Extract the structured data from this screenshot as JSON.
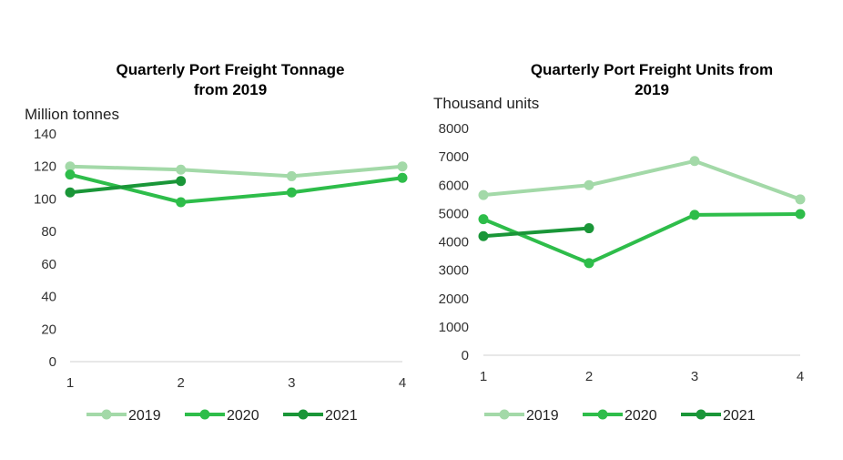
{
  "chart_data": [
    {
      "type": "line",
      "title_lines": [
        "Quarterly Port Freight Tonnage",
        "from 2019"
      ],
      "ylabel": "Million tonnes",
      "xlabel": "",
      "x": [
        "1",
        "2",
        "3",
        "4"
      ],
      "ylim": [
        0,
        140
      ],
      "yticks": [
        "0",
        "20",
        "40",
        "60",
        "80",
        "100",
        "120",
        "140"
      ],
      "grid": false,
      "legend": "bottom",
      "series": [
        {
          "name": "2019",
          "color": "#a3d9a8",
          "values": [
            120,
            118,
            114,
            120
          ]
        },
        {
          "name": "2020",
          "color": "#2ebd4a",
          "values": [
            115,
            98,
            104,
            113
          ]
        },
        {
          "name": "2021",
          "color": "#1a9638",
          "values": [
            104,
            111,
            null,
            null
          ]
        }
      ]
    },
    {
      "type": "line",
      "title_lines": [
        "Quarterly Port Freight Units from",
        "2019"
      ],
      "ylabel": "Thousand units",
      "xlabel": "",
      "x": [
        "1",
        "2",
        "3",
        "4"
      ],
      "ylim": [
        0,
        8000
      ],
      "yticks": [
        "0",
        "1000",
        "2000",
        "3000",
        "4000",
        "5000",
        "6000",
        "7000",
        "8000"
      ],
      "grid": false,
      "legend": "bottom",
      "series": [
        {
          "name": "2019",
          "color": "#a3d9a8",
          "values": [
            5650,
            6000,
            6850,
            5500
          ]
        },
        {
          "name": "2020",
          "color": "#2ebd4a",
          "values": [
            4800,
            3250,
            4950,
            4980
          ]
        },
        {
          "name": "2021",
          "color": "#1a9638",
          "values": [
            4200,
            4480,
            null,
            null
          ]
        }
      ]
    }
  ]
}
